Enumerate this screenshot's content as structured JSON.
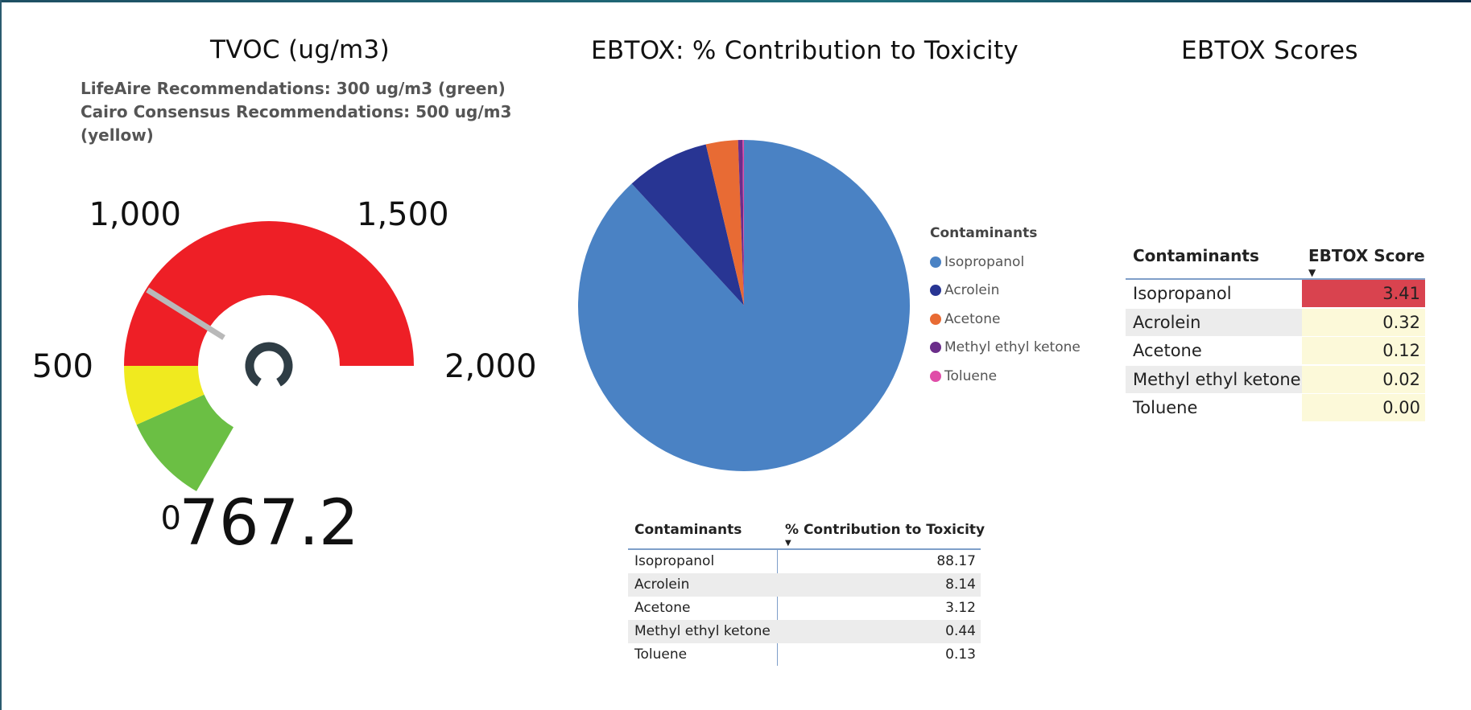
{
  "gauge": {
    "title": "TVOC (ug/m3)",
    "subtitle_lines": [
      "LifeAire Recommendations: 300 ug/m3 (green)",
      "Cairo Consensus Recommendations: 500 ug/m3",
      "(yellow)"
    ],
    "min": 0,
    "max": 2000,
    "value": 767.2,
    "value_label": "767.2",
    "ticks": [
      {
        "value": 0,
        "label": "0"
      },
      {
        "value": 500,
        "label": "500"
      },
      {
        "value": 1000,
        "label": "1,000"
      },
      {
        "value": 1500,
        "label": "1,500"
      },
      {
        "value": 2000,
        "label": "2,000"
      }
    ],
    "bands": [
      {
        "from": 0,
        "to": 300,
        "color": "#6bbf44"
      },
      {
        "from": 300,
        "to": 500,
        "color": "#f0ea1f"
      },
      {
        "from": 500,
        "to": 2000,
        "color": "#ee1f26"
      }
    ]
  },
  "chart_data": [
    {
      "type": "gauge",
      "title": "TVOC (ug/m3)",
      "value": 767.2,
      "range": [
        0,
        2000
      ],
      "bands": [
        {
          "from": 0,
          "to": 300,
          "color": "green"
        },
        {
          "from": 300,
          "to": 500,
          "color": "yellow"
        },
        {
          "from": 500,
          "to": 2000,
          "color": "red"
        }
      ]
    },
    {
      "type": "pie",
      "title": "EBTOX: % Contribution to Toxicity",
      "legend_title": "Contaminants",
      "legend_position": "right",
      "categories": [
        "Isopropanol",
        "Acrolein",
        "Acetone",
        "Methyl ethyl ketone",
        "Toluene"
      ],
      "values": [
        88.17,
        8.14,
        3.12,
        0.44,
        0.13
      ],
      "colors": [
        "#4a82c4",
        "#283593",
        "#e86b34",
        "#6b2d8a",
        "#e04da8"
      ]
    },
    {
      "type": "table",
      "columns": [
        "Contaminants",
        "% Contribution to Toxicity"
      ],
      "rows": [
        [
          "Isopropanol",
          "88.17"
        ],
        [
          "Acrolein",
          "8.14"
        ],
        [
          "Acetone",
          "3.12"
        ],
        [
          "Methyl ethyl ketone",
          "0.44"
        ],
        [
          "Toluene",
          "0.13"
        ]
      ]
    },
    {
      "type": "table",
      "title": "EBTOX Scores",
      "columns": [
        "Contaminants",
        "EBTOX Score"
      ],
      "rows": [
        [
          "Isopropanol",
          "3.41"
        ],
        [
          "Acrolein",
          "0.32"
        ],
        [
          "Acetone",
          "0.12"
        ],
        [
          "Methyl ethyl ketone",
          "0.02"
        ],
        [
          "Toluene",
          "0.00"
        ]
      ]
    }
  ],
  "pie": {
    "title": "EBTOX: % Contribution to Toxicity",
    "legend_title": "Contaminants",
    "slices": [
      {
        "label": "Isopropanol",
        "value": 88.17,
        "color": "#4a82c4"
      },
      {
        "label": "Acrolein",
        "value": 8.14,
        "color": "#283593"
      },
      {
        "label": "Acetone",
        "value": 3.12,
        "color": "#e86b34"
      },
      {
        "label": "Methyl ethyl ketone",
        "value": 0.44,
        "color": "#6b2d8a"
      },
      {
        "label": "Toluene",
        "value": 0.13,
        "color": "#e04da8"
      }
    ]
  },
  "tox_table": {
    "headers": [
      "Contaminants",
      "% Contribution to Toxicity"
    ],
    "sort_indicator": "▼",
    "rows": [
      {
        "name": "Isopropanol",
        "value": "88.17"
      },
      {
        "name": "Acrolein",
        "value": "8.14"
      },
      {
        "name": "Acetone",
        "value": "3.12"
      },
      {
        "name": "Methyl ethyl ketone",
        "value": "0.44"
      },
      {
        "name": "Toluene",
        "value": "0.13"
      }
    ]
  },
  "scores": {
    "title": "EBTOX Scores",
    "headers": [
      "Contaminants",
      "EBTOX Score"
    ],
    "sort_indicator": "▼",
    "rows": [
      {
        "name": "Isopropanol",
        "value": "3.41",
        "color": "#d9434f"
      },
      {
        "name": "Acrolein",
        "value": "0.32",
        "color": "#fcf9d9"
      },
      {
        "name": "Acetone",
        "value": "0.12",
        "color": "#fcf9d9"
      },
      {
        "name": "Methyl ethyl ketone",
        "value": "0.02",
        "color": "#fcf9d9"
      },
      {
        "name": "Toluene",
        "value": "0.00",
        "color": "#fcf9d9"
      }
    ]
  }
}
